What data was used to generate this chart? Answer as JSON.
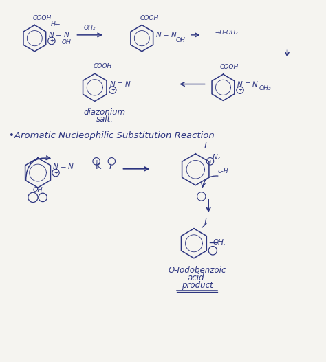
{
  "bg_color": "#f5f4f0",
  "ink_color": "#2d3580",
  "figsize": [
    4.74,
    5.27
  ],
  "dpi": 100,
  "title": "Aromatic Nucleophilic Substitution Reaction",
  "diazonium_label": "diazonium\nsalt.",
  "product_label": "O-Iodobenzoic\nacid.\nproduct"
}
